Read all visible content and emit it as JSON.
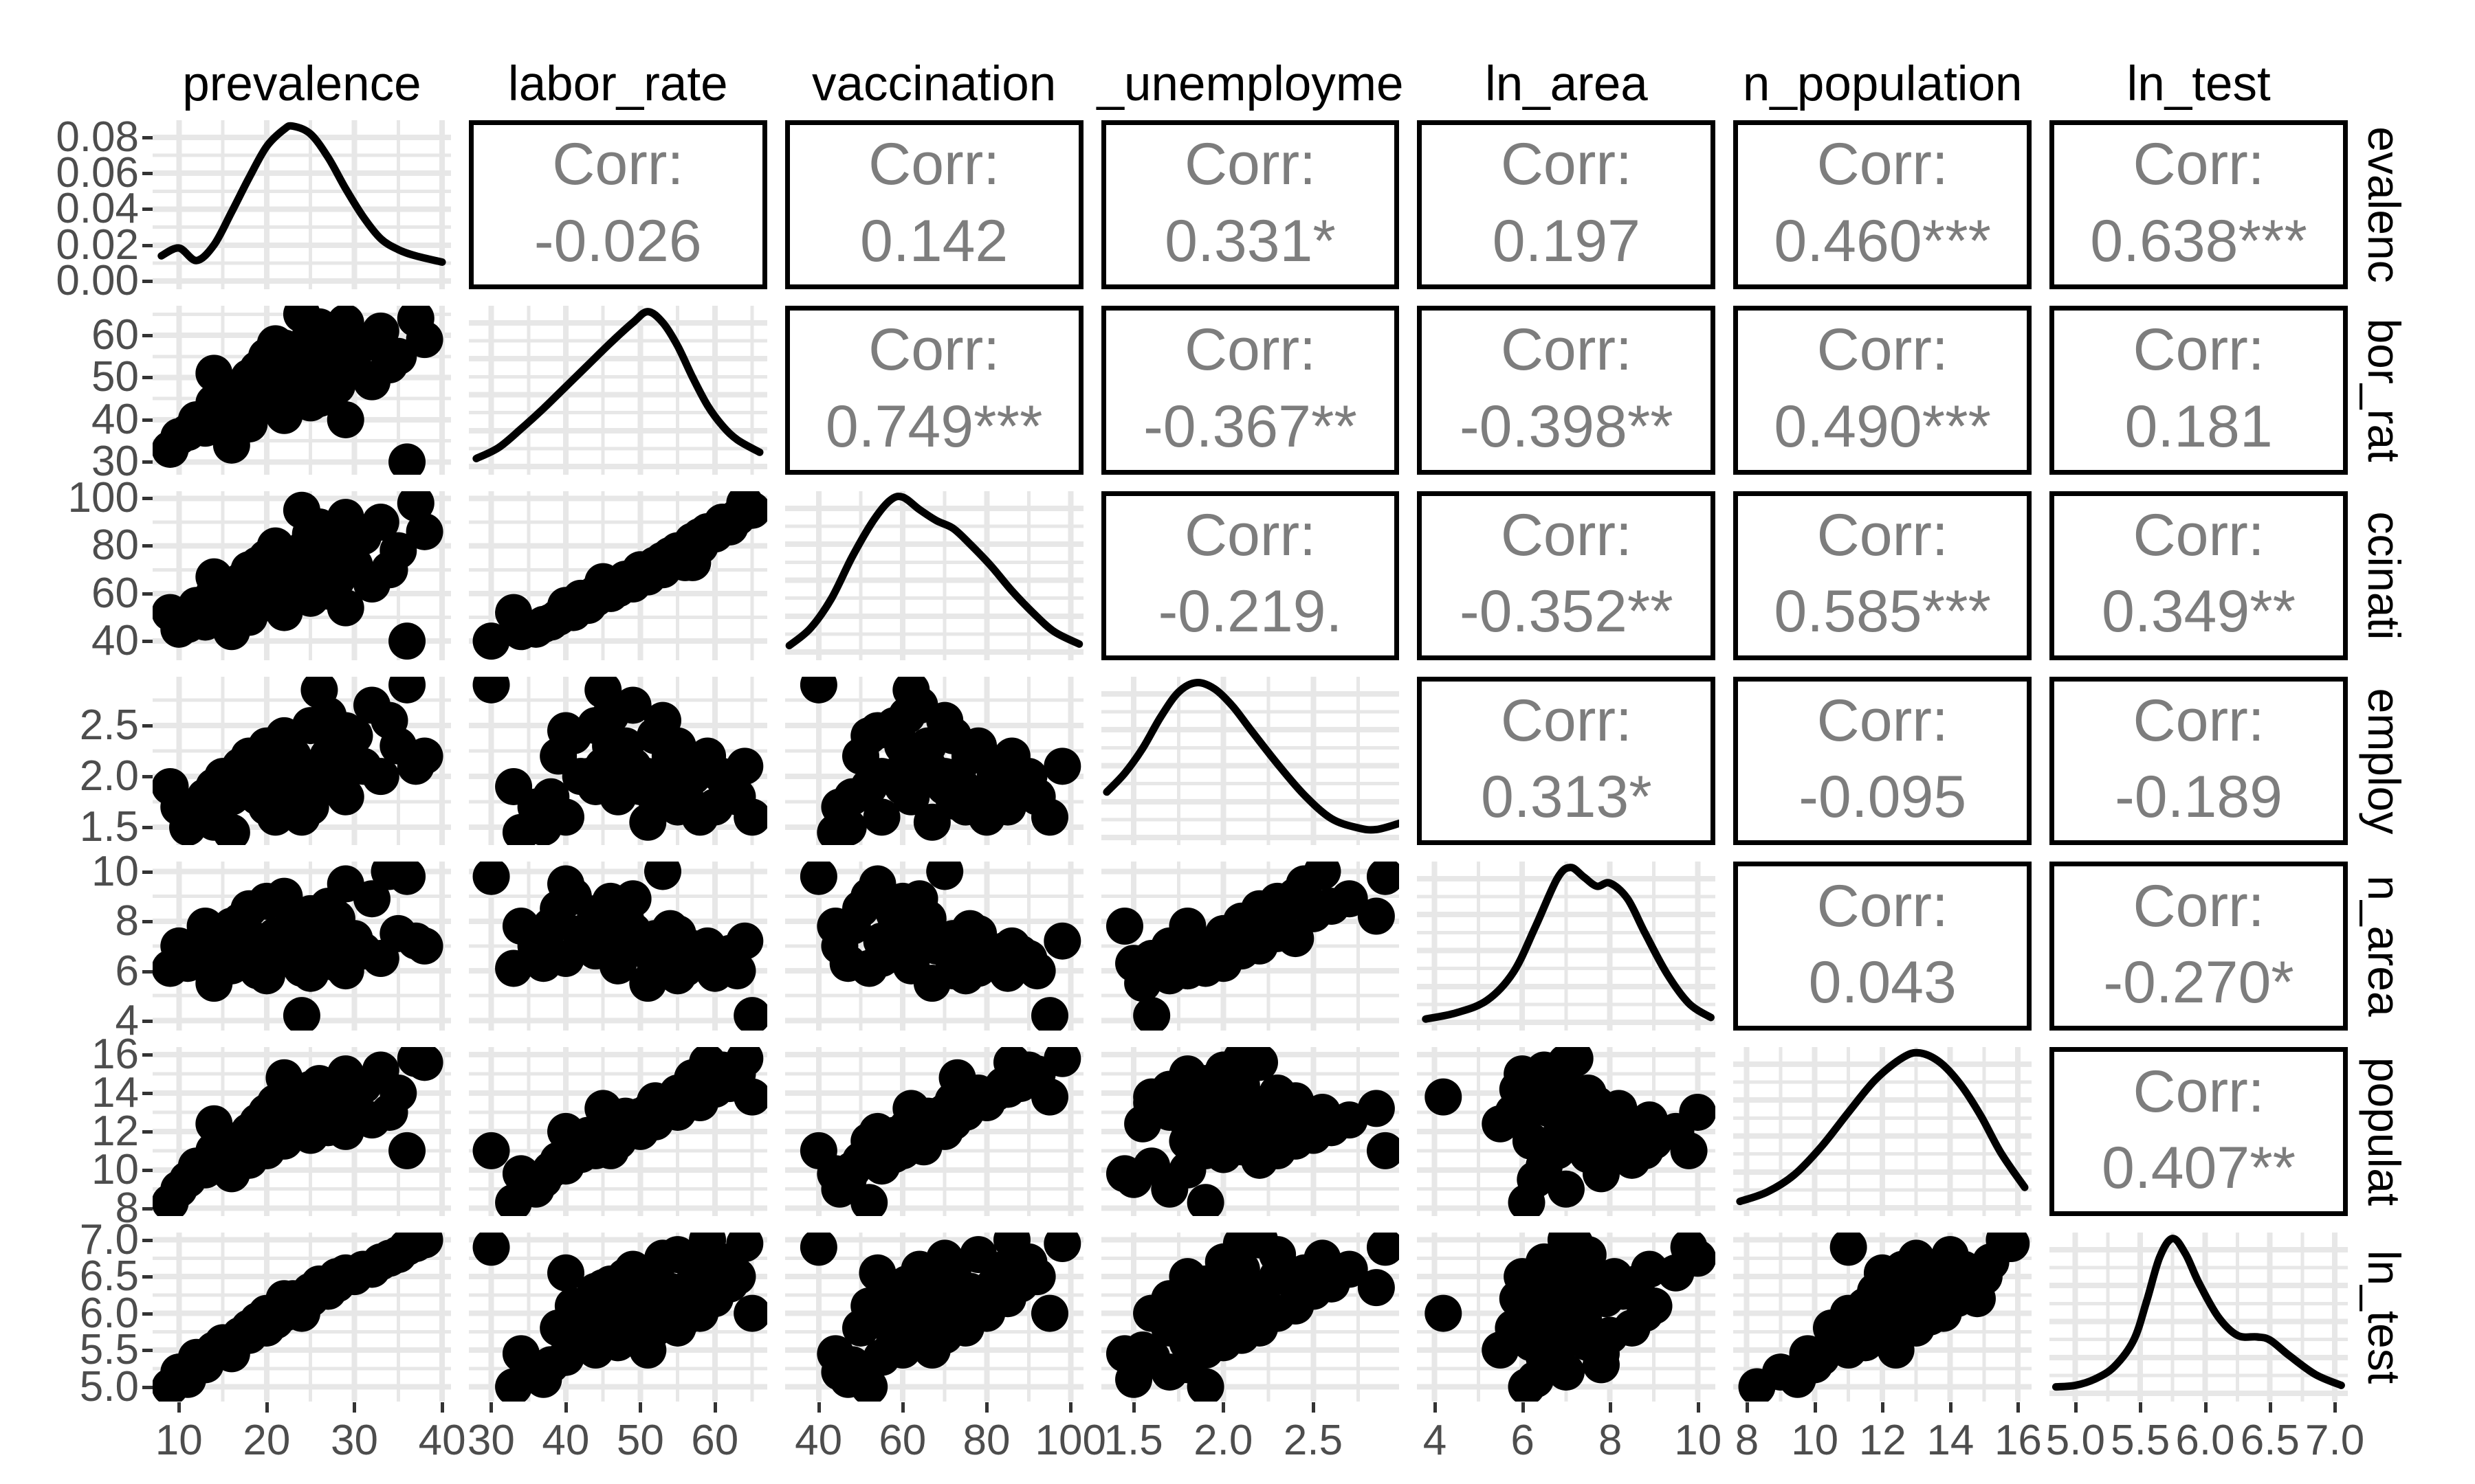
{
  "figure_type": "ggpairs correlation scatterplot matrix",
  "corr_label": "Corr:",
  "colors": {
    "background": "#ffffff",
    "points": "#000000",
    "density_line": "#000000",
    "grid": "#e7e7e7",
    "corr_text": "#7d7d7d",
    "corr_border": "#000000",
    "tick_text": "#4d4d4d",
    "header_text": "#000000",
    "tick_mark": "#333333"
  },
  "chart_data": {
    "type": "scatter",
    "subtype": "scatterplot-matrix",
    "title": "",
    "legend": "none",
    "grid": "on",
    "variables": [
      {
        "name": "prevalence",
        "header": "prevalence",
        "strip_label": "evalenc",
        "domain": [
          7,
          41
        ],
        "ticks": [
          10,
          20,
          30,
          40
        ],
        "tick_labels": [
          "10",
          "20",
          "30",
          "40"
        ]
      },
      {
        "name": "labor_rate",
        "header": "labor_rate",
        "strip_label": "bor_rat",
        "domain": [
          27,
          67
        ],
        "ticks": [
          30,
          40,
          50,
          60
        ],
        "tick_labels": [
          "30",
          "40",
          "50",
          "60"
        ]
      },
      {
        "name": "vaccination",
        "header": "vaccination",
        "strip_label": "ccinati",
        "domain": [
          32,
          103
        ],
        "ticks": [
          40,
          60,
          80,
          100
        ],
        "tick_labels": [
          "40",
          "60",
          "80",
          "100"
        ]
      },
      {
        "name": "ln_unemployment",
        "header": "_unemployme",
        "strip_label": "employ",
        "domain": [
          1.32,
          2.98
        ],
        "ticks": [
          1.5,
          2.0,
          2.5
        ],
        "tick_labels": [
          "1.5",
          "2.0",
          "2.5"
        ]
      },
      {
        "name": "ln_area",
        "header": "ln_area",
        "strip_label": "n_area",
        "domain": [
          3.6,
          10.4
        ],
        "ticks": [
          4,
          6,
          8,
          10
        ],
        "tick_labels": [
          "4",
          "6",
          "8",
          "10"
        ]
      },
      {
        "name": "ln_population",
        "header": "n_population",
        "strip_label": "populat",
        "domain": [
          7.6,
          16.4
        ],
        "ticks": [
          8,
          10,
          12,
          14,
          16
        ],
        "tick_labels": [
          "8",
          "10",
          "12",
          "14",
          "16"
        ]
      },
      {
        "name": "ln_test",
        "header": "ln_test",
        "strip_label": "ln_test",
        "domain": [
          4.8,
          7.1
        ],
        "ticks": [
          5.0,
          5.5,
          6.0,
          6.5,
          7.0
        ],
        "tick_labels": [
          "5.0",
          "5.5",
          "6.0",
          "6.5",
          "7.0"
        ]
      }
    ],
    "density_axis": {
      "domain": [
        -0.0045,
        0.0895
      ],
      "ticks": [
        0,
        0.02,
        0.04,
        0.06,
        0.08
      ],
      "tick_labels": [
        "0.00",
        "0.02",
        "0.04",
        "0.06",
        "0.08"
      ]
    },
    "correlations": [
      {
        "row": 0,
        "col": 1,
        "text": "-0.026"
      },
      {
        "row": 0,
        "col": 2,
        "text": "0.142"
      },
      {
        "row": 0,
        "col": 3,
        "text": "0.331*"
      },
      {
        "row": 0,
        "col": 4,
        "text": "0.197"
      },
      {
        "row": 0,
        "col": 5,
        "text": "0.460***"
      },
      {
        "row": 0,
        "col": 6,
        "text": "0.638***"
      },
      {
        "row": 1,
        "col": 2,
        "text": "0.749***"
      },
      {
        "row": 1,
        "col": 3,
        "text": "-0.367**"
      },
      {
        "row": 1,
        "col": 4,
        "text": "-0.398**"
      },
      {
        "row": 1,
        "col": 5,
        "text": "0.490***"
      },
      {
        "row": 1,
        "col": 6,
        "text": "0.181"
      },
      {
        "row": 2,
        "col": 3,
        "text": "-0.219."
      },
      {
        "row": 2,
        "col": 4,
        "text": "-0.352**"
      },
      {
        "row": 2,
        "col": 5,
        "text": "0.585***"
      },
      {
        "row": 2,
        "col": 6,
        "text": "0.349**"
      },
      {
        "row": 3,
        "col": 4,
        "text": "0.313*"
      },
      {
        "row": 3,
        "col": 5,
        "text": "-0.095"
      },
      {
        "row": 3,
        "col": 6,
        "text": "-0.189"
      },
      {
        "row": 4,
        "col": 5,
        "text": "0.043"
      },
      {
        "row": 4,
        "col": 6,
        "text": "-0.270*"
      },
      {
        "row": 5,
        "col": 6,
        "text": "0.407**"
      }
    ],
    "densities": {
      "prevalence": [
        [
          8,
          0.17
        ],
        [
          10,
          0.22
        ],
        [
          12,
          0.14
        ],
        [
          14,
          0.24
        ],
        [
          16,
          0.45
        ],
        [
          18,
          0.67
        ],
        [
          20,
          0.87
        ],
        [
          22,
          0.98
        ],
        [
          23,
          1.0
        ],
        [
          25,
          0.95
        ],
        [
          27,
          0.8
        ],
        [
          29,
          0.6
        ],
        [
          31,
          0.42
        ],
        [
          33,
          0.28
        ],
        [
          35,
          0.21
        ],
        [
          37,
          0.17
        ],
        [
          40,
          0.13
        ]
      ],
      "labor_rate": [
        [
          28,
          0.06
        ],
        [
          31,
          0.13
        ],
        [
          34,
          0.25
        ],
        [
          37,
          0.38
        ],
        [
          40,
          0.52
        ],
        [
          43,
          0.66
        ],
        [
          46,
          0.8
        ],
        [
          49,
          0.93
        ],
        [
          51,
          1.0
        ],
        [
          53,
          0.93
        ],
        [
          55,
          0.78
        ],
        [
          57,
          0.58
        ],
        [
          59,
          0.4
        ],
        [
          61,
          0.27
        ],
        [
          63,
          0.18
        ],
        [
          66,
          0.1
        ]
      ],
      "vaccination": [
        [
          33,
          0.05
        ],
        [
          38,
          0.16
        ],
        [
          43,
          0.35
        ],
        [
          48,
          0.62
        ],
        [
          53,
          0.85
        ],
        [
          57,
          0.98
        ],
        [
          60,
          1.0
        ],
        [
          64,
          0.92
        ],
        [
          68,
          0.85
        ],
        [
          72,
          0.8
        ],
        [
          76,
          0.7
        ],
        [
          81,
          0.56
        ],
        [
          86,
          0.4
        ],
        [
          91,
          0.26
        ],
        [
          96,
          0.14
        ],
        [
          102,
          0.06
        ]
      ],
      "ln_unemployment": [
        [
          1.35,
          0.3
        ],
        [
          1.45,
          0.42
        ],
        [
          1.55,
          0.58
        ],
        [
          1.65,
          0.78
        ],
        [
          1.75,
          0.94
        ],
        [
          1.85,
          1.0
        ],
        [
          1.95,
          0.96
        ],
        [
          2.05,
          0.85
        ],
        [
          2.15,
          0.7
        ],
        [
          2.3,
          0.48
        ],
        [
          2.45,
          0.28
        ],
        [
          2.6,
          0.13
        ],
        [
          2.75,
          0.07
        ],
        [
          2.85,
          0.06
        ],
        [
          2.98,
          0.1
        ]
      ],
      "ln_area": [
        [
          3.8,
          0.03
        ],
        [
          4.5,
          0.07
        ],
        [
          5.2,
          0.15
        ],
        [
          5.8,
          0.33
        ],
        [
          6.3,
          0.62
        ],
        [
          6.8,
          0.93
        ],
        [
          7.1,
          1.0
        ],
        [
          7.4,
          0.94
        ],
        [
          7.7,
          0.88
        ],
        [
          8.0,
          0.9
        ],
        [
          8.4,
          0.8
        ],
        [
          8.8,
          0.58
        ],
        [
          9.3,
          0.32
        ],
        [
          9.8,
          0.13
        ],
        [
          10.3,
          0.04
        ]
      ],
      "ln_population": [
        [
          7.8,
          0.05
        ],
        [
          8.6,
          0.11
        ],
        [
          9.4,
          0.22
        ],
        [
          10.2,
          0.4
        ],
        [
          11.0,
          0.62
        ],
        [
          11.8,
          0.83
        ],
        [
          12.6,
          0.97
        ],
        [
          13.1,
          1.0
        ],
        [
          13.7,
          0.94
        ],
        [
          14.3,
          0.8
        ],
        [
          14.9,
          0.6
        ],
        [
          15.5,
          0.36
        ],
        [
          16.2,
          0.14
        ]
      ],
      "ln_test": [
        [
          4.85,
          0.05
        ],
        [
          5.0,
          0.06
        ],
        [
          5.15,
          0.1
        ],
        [
          5.3,
          0.18
        ],
        [
          5.45,
          0.35
        ],
        [
          5.55,
          0.6
        ],
        [
          5.65,
          0.88
        ],
        [
          5.75,
          1.0
        ],
        [
          5.85,
          0.9
        ],
        [
          5.95,
          0.72
        ],
        [
          6.1,
          0.5
        ],
        [
          6.25,
          0.38
        ],
        [
          6.4,
          0.37
        ],
        [
          6.5,
          0.35
        ],
        [
          6.65,
          0.25
        ],
        [
          6.85,
          0.13
        ],
        [
          7.05,
          0.06
        ]
      ]
    },
    "observations": {
      "columns": [
        "prevalence",
        "labor_rate",
        "vaccination",
        "ln_unemployment",
        "ln_area",
        "ln_population",
        "ln_test"
      ],
      "rows": [
        [
          9,
          33,
          52,
          1.9,
          6.1,
          8.3,
          5.0
        ],
        [
          10,
          36,
          45,
          1.7,
          7.0,
          9.0,
          5.2
        ],
        [
          12,
          40,
          55,
          1.6,
          6.5,
          10.2,
          5.4
        ],
        [
          13,
          38,
          48,
          1.8,
          7.8,
          10.0,
          5.3
        ],
        [
          14,
          44,
          60,
          1.9,
          6.8,
          11.0,
          5.5
        ],
        [
          15,
          42,
          58,
          2.0,
          7.5,
          10.8,
          5.6
        ],
        [
          16,
          47,
          62,
          1.8,
          6.2,
          11.5,
          5.6
        ],
        [
          17,
          45,
          65,
          2.1,
          8.0,
          11.2,
          5.7
        ],
        [
          18,
          50,
          70,
          1.9,
          6.9,
          12.0,
          5.7
        ],
        [
          18,
          39,
          50,
          2.2,
          8.5,
          10.5,
          5.8
        ],
        [
          19,
          52,
          72,
          1.8,
          6.0,
          12.5,
          5.8
        ],
        [
          19,
          43,
          55,
          2.0,
          7.2,
          11.8,
          5.9
        ],
        [
          20,
          55,
          75,
          1.7,
          5.8,
          13.0,
          5.8
        ],
        [
          20,
          46,
          60,
          2.3,
          8.8,
          11.0,
          6.0
        ],
        [
          21,
          48,
          66,
          2.1,
          7.4,
          12.2,
          5.9
        ],
        [
          21,
          58,
          80,
          1.6,
          6.4,
          13.5,
          6.0
        ],
        [
          22,
          50,
          68,
          2.0,
          7.0,
          12.8,
          6.0
        ],
        [
          22,
          41,
          52,
          2.4,
          9.0,
          11.5,
          6.1
        ],
        [
          23,
          53,
          74,
          1.9,
          6.6,
          13.2,
          6.1
        ],
        [
          23,
          47,
          63,
          2.2,
          7.9,
          12.0,
          6.2
        ],
        [
          24,
          56,
          78,
          1.8,
          6.1,
          13.8,
          6.1
        ],
        [
          24,
          49,
          65,
          2.1,
          7.6,
          12.5,
          6.2
        ],
        [
          25,
          60,
          85,
          1.7,
          5.9,
          14.2,
          6.2
        ],
        [
          25,
          44,
          58,
          2.5,
          8.3,
          11.8,
          6.3
        ],
        [
          26,
          51,
          70,
          2.0,
          7.1,
          13.0,
          6.3
        ],
        [
          26,
          62,
          88,
          1.9,
          6.7,
          14.5,
          6.4
        ],
        [
          27,
          54,
          76,
          2.2,
          7.7,
          13.4,
          6.3
        ],
        [
          27,
          46,
          61,
          2.6,
          8.6,
          12.2,
          6.4
        ],
        [
          28,
          57,
          82,
          2.0,
          6.3,
          14.0,
          6.4
        ],
        [
          28,
          48,
          66,
          2.3,
          8.1,
          12.8,
          6.5
        ],
        [
          29,
          63,
          92,
          1.8,
          6.0,
          15.0,
          6.5
        ],
        [
          30,
          52,
          72,
          2.4,
          7.3,
          13.6,
          6.5
        ],
        [
          31,
          58,
          84,
          2.1,
          6.8,
          14.4,
          6.6
        ],
        [
          32,
          49,
          64,
          2.7,
          8.9,
          12.6,
          6.6
        ],
        [
          33,
          61,
          90,
          2.0,
          6.5,
          15.2,
          6.7
        ],
        [
          35,
          55,
          78,
          2.3,
          7.5,
          14.0,
          6.8
        ],
        [
          38,
          59,
          86,
          2.2,
          7.0,
          15.6,
          7.0
        ],
        [
          11,
          37,
          47,
          1.5,
          6.3,
          9.5,
          5.1
        ],
        [
          36,
          30,
          40,
          2.9,
          9.8,
          11.0,
          6.9
        ],
        [
          24,
          65,
          95,
          1.6,
          4.2,
          13.8,
          6.0
        ],
        [
          22,
          57,
          73,
          2.0,
          6.9,
          14.8,
          6.2
        ],
        [
          37,
          64,
          98,
          2.1,
          7.2,
          15.8,
          6.95
        ],
        [
          16,
          34,
          44,
          1.45,
          7.8,
          9.8,
          5.45
        ],
        [
          26,
          45,
          62,
          2.85,
          8.2,
          13.2,
          6.35
        ],
        [
          14,
          51,
          67,
          1.55,
          5.5,
          12.4,
          5.5
        ],
        [
          29,
          40,
          54,
          2.45,
          9.5,
          12.0,
          6.55
        ],
        [
          21,
          56,
          73,
          1.75,
          6.6,
          13.4,
          5.95
        ],
        [
          34,
          53,
          70,
          2.55,
          10.0,
          13.0,
          6.75
        ]
      ]
    }
  }
}
